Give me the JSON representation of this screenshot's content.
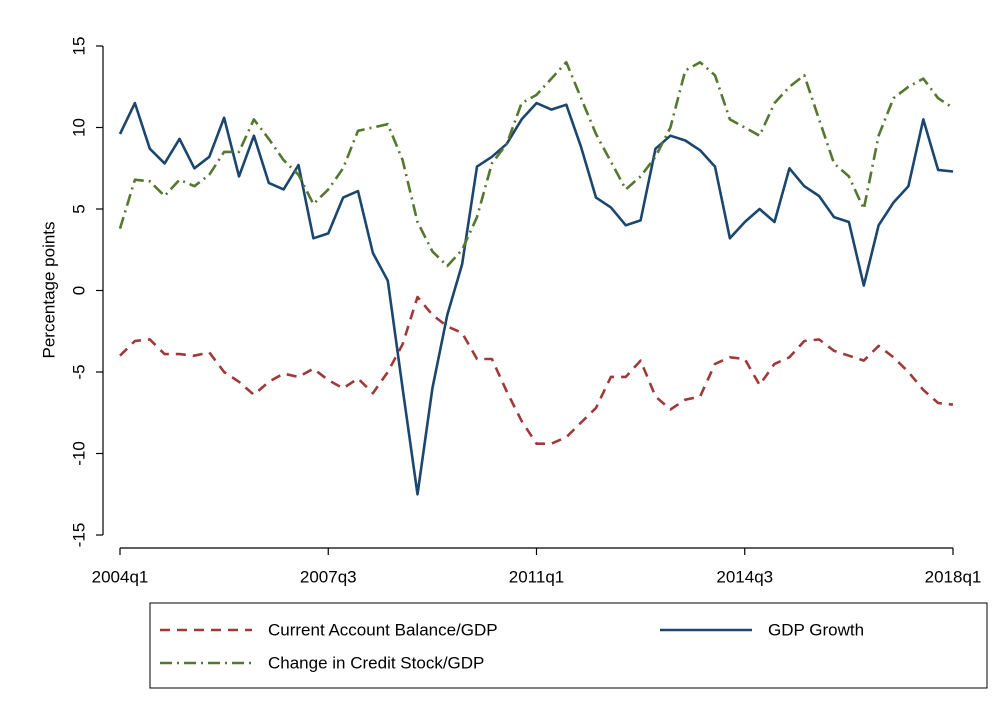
{
  "chart_data": {
    "type": "line",
    "y_label": "Percentage points",
    "categories": [
      "2004q1",
      null,
      null,
      null,
      null,
      null,
      null,
      null,
      null,
      null,
      null,
      null,
      null,
      null,
      "2007q3",
      null,
      null,
      null,
      null,
      null,
      null,
      null,
      null,
      null,
      null,
      null,
      null,
      null,
      "2011q1",
      null,
      null,
      null,
      null,
      null,
      null,
      null,
      null,
      null,
      null,
      null,
      null,
      null,
      "2014q3",
      null,
      null,
      null,
      null,
      null,
      null,
      null,
      null,
      null,
      null,
      null,
      null,
      null,
      "2018q1"
    ],
    "series": [
      {
        "name": "Current Account Balance/GDP",
        "color": "#9e3a38",
        "dash": "dash",
        "values": [
          -4.0,
          -3.1,
          -3.0,
          -3.9,
          -3.9,
          -4.0,
          -3.8,
          -5.0,
          -5.6,
          -6.4,
          -5.6,
          -5.1,
          -5.3,
          -4.8,
          -5.5,
          -6.0,
          -5.4,
          -6.3,
          -5.0,
          -3.3,
          -0.4,
          -1.5,
          -2.2,
          -2.6,
          -4.2,
          -4.2,
          -6.2,
          -8.0,
          -9.4,
          -9.4,
          -9.0,
          -8.1,
          -7.2,
          -5.3,
          -5.3,
          -4.3,
          -6.5,
          -7.3,
          -6.7,
          -6.5,
          -4.5,
          -4.1,
          -4.2,
          -5.8,
          -4.5,
          -4.1,
          -3.1,
          -3.0,
          -3.7,
          -4.0,
          -4.3,
          -3.4,
          -4.1,
          -5.0,
          -6.1,
          -6.9,
          -7.0
        ]
      },
      {
        "name": "GDP Growth",
        "color": "#1b476f",
        "dash": "solid",
        "values": [
          9.6,
          11.5,
          8.7,
          7.8,
          9.3,
          7.5,
          8.2,
          10.6,
          7.0,
          9.5,
          6.6,
          6.2,
          7.7,
          3.2,
          3.5,
          5.7,
          6.1,
          2.3,
          0.6,
          -6.0,
          -12.5,
          -6.0,
          -1.5,
          1.6,
          7.6,
          8.2,
          9.0,
          10.5,
          11.5,
          11.1,
          11.4,
          8.8,
          5.7,
          5.1,
          4.0,
          4.3,
          8.7,
          9.5,
          9.2,
          8.6,
          7.6,
          3.2,
          4.2,
          5.0,
          4.2,
          7.5,
          6.4,
          5.8,
          4.5,
          4.2,
          0.3,
          4.0,
          5.4,
          6.4,
          10.5,
          7.4,
          7.3
        ]
      },
      {
        "name": "Change in Credit Stock/GDP",
        "color": "#55772f",
        "dash": "dashdot",
        "values": [
          3.8,
          6.8,
          6.7,
          5.8,
          6.8,
          6.4,
          7.1,
          8.5,
          8.5,
          10.5,
          9.3,
          8.0,
          7.1,
          5.3,
          6.2,
          7.5,
          9.8,
          10.0,
          10.2,
          8.0,
          4.2,
          2.4,
          1.5,
          2.5,
          4.5,
          7.8,
          9.0,
          11.5,
          12.0,
          13.0,
          14.0,
          11.8,
          9.6,
          7.9,
          6.2,
          7.0,
          8.2,
          10.0,
          13.5,
          14.0,
          13.2,
          10.5,
          10.0,
          9.5,
          11.5,
          12.5,
          13.2,
          10.5,
          7.8,
          7.0,
          5.0,
          9.5,
          11.8,
          12.5,
          13.0,
          11.8,
          11.2
        ]
      }
    ],
    "ylim": [
      -15,
      15
    ],
    "yticks": [
      -15,
      -10,
      -5,
      0,
      5,
      10,
      15
    ],
    "grid": false,
    "legend": "bottom"
  }
}
